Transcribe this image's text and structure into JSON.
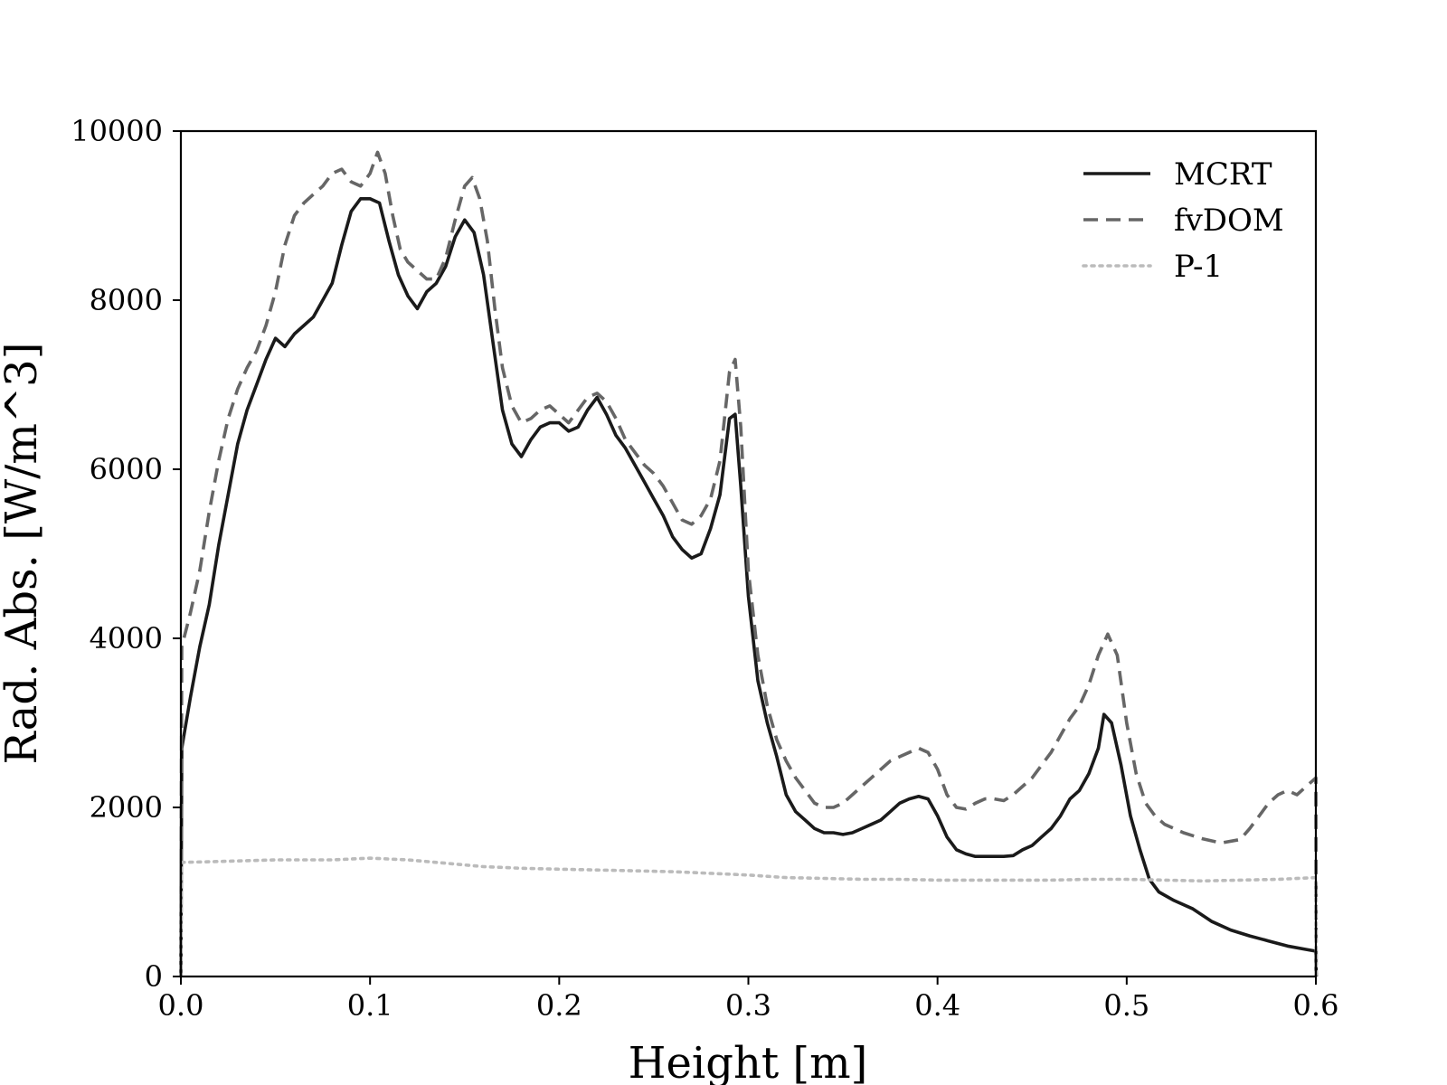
{
  "chart_data": {
    "type": "line",
    "title": "",
    "xlabel": "Height [m]",
    "ylabel": "Rad. Abs. [W/m^3]",
    "xlim": [
      0.0,
      0.6
    ],
    "ylim": [
      0,
      10000
    ],
    "xticks": [
      0.0,
      0.1,
      0.2,
      0.3,
      0.4,
      0.5,
      0.6
    ],
    "xtick_labels": [
      "0.0",
      "0.1",
      "0.2",
      "0.3",
      "0.4",
      "0.5",
      "0.6"
    ],
    "yticks": [
      0,
      2000,
      4000,
      6000,
      8000,
      10000
    ],
    "ytick_labels": [
      "0",
      "2000",
      "4000",
      "6000",
      "8000",
      "10000"
    ],
    "grid": false,
    "legend_position": "top-right",
    "series": [
      {
        "name": "MCRT",
        "color": "#1a1a1a",
        "style": "solid",
        "points": [
          [
            0.0,
            0
          ],
          [
            0.0005,
            2700
          ],
          [
            0.005,
            3300
          ],
          [
            0.01,
            3900
          ],
          [
            0.015,
            4400
          ],
          [
            0.02,
            5100
          ],
          [
            0.025,
            5700
          ],
          [
            0.03,
            6300
          ],
          [
            0.035,
            6700
          ],
          [
            0.04,
            7000
          ],
          [
            0.045,
            7300
          ],
          [
            0.05,
            7550
          ],
          [
            0.055,
            7450
          ],
          [
            0.06,
            7600
          ],
          [
            0.065,
            7700
          ],
          [
            0.07,
            7800
          ],
          [
            0.075,
            8000
          ],
          [
            0.08,
            8200
          ],
          [
            0.085,
            8650
          ],
          [
            0.09,
            9050
          ],
          [
            0.095,
            9200
          ],
          [
            0.1,
            9200
          ],
          [
            0.105,
            9150
          ],
          [
            0.11,
            8700
          ],
          [
            0.115,
            8300
          ],
          [
            0.12,
            8050
          ],
          [
            0.125,
            7900
          ],
          [
            0.13,
            8100
          ],
          [
            0.135,
            8200
          ],
          [
            0.14,
            8400
          ],
          [
            0.145,
            8750
          ],
          [
            0.15,
            8950
          ],
          [
            0.155,
            8800
          ],
          [
            0.16,
            8300
          ],
          [
            0.165,
            7500
          ],
          [
            0.17,
            6700
          ],
          [
            0.175,
            6300
          ],
          [
            0.18,
            6150
          ],
          [
            0.185,
            6350
          ],
          [
            0.19,
            6500
          ],
          [
            0.195,
            6550
          ],
          [
            0.2,
            6550
          ],
          [
            0.205,
            6450
          ],
          [
            0.21,
            6500
          ],
          [
            0.215,
            6700
          ],
          [
            0.22,
            6850
          ],
          [
            0.225,
            6650
          ],
          [
            0.23,
            6400
          ],
          [
            0.235,
            6250
          ],
          [
            0.24,
            6050
          ],
          [
            0.245,
            5850
          ],
          [
            0.25,
            5650
          ],
          [
            0.255,
            5450
          ],
          [
            0.26,
            5200
          ],
          [
            0.265,
            5050
          ],
          [
            0.27,
            4950
          ],
          [
            0.275,
            5000
          ],
          [
            0.28,
            5300
          ],
          [
            0.285,
            5700
          ],
          [
            0.29,
            6600
          ],
          [
            0.293,
            6650
          ],
          [
            0.296,
            5800
          ],
          [
            0.3,
            4500
          ],
          [
            0.305,
            3500
          ],
          [
            0.31,
            3000
          ],
          [
            0.315,
            2600
          ],
          [
            0.32,
            2150
          ],
          [
            0.325,
            1950
          ],
          [
            0.33,
            1850
          ],
          [
            0.335,
            1750
          ],
          [
            0.34,
            1700
          ],
          [
            0.345,
            1700
          ],
          [
            0.35,
            1680
          ],
          [
            0.355,
            1700
          ],
          [
            0.36,
            1750
          ],
          [
            0.365,
            1800
          ],
          [
            0.37,
            1850
          ],
          [
            0.375,
            1950
          ],
          [
            0.38,
            2050
          ],
          [
            0.385,
            2100
          ],
          [
            0.39,
            2130
          ],
          [
            0.395,
            2100
          ],
          [
            0.4,
            1900
          ],
          [
            0.405,
            1650
          ],
          [
            0.41,
            1500
          ],
          [
            0.415,
            1450
          ],
          [
            0.42,
            1420
          ],
          [
            0.425,
            1420
          ],
          [
            0.43,
            1420
          ],
          [
            0.435,
            1420
          ],
          [
            0.44,
            1430
          ],
          [
            0.445,
            1500
          ],
          [
            0.45,
            1550
          ],
          [
            0.455,
            1650
          ],
          [
            0.46,
            1750
          ],
          [
            0.465,
            1900
          ],
          [
            0.47,
            2100
          ],
          [
            0.475,
            2200
          ],
          [
            0.48,
            2400
          ],
          [
            0.485,
            2700
          ],
          [
            0.488,
            3100
          ],
          [
            0.492,
            3000
          ],
          [
            0.497,
            2500
          ],
          [
            0.502,
            1900
          ],
          [
            0.507,
            1500
          ],
          [
            0.512,
            1150
          ],
          [
            0.517,
            1000
          ],
          [
            0.525,
            900
          ],
          [
            0.535,
            800
          ],
          [
            0.545,
            650
          ],
          [
            0.555,
            550
          ],
          [
            0.565,
            480
          ],
          [
            0.575,
            420
          ],
          [
            0.585,
            360
          ],
          [
            0.595,
            320
          ],
          [
            0.6,
            300
          ],
          [
            0.6002,
            0
          ]
        ]
      },
      {
        "name": "fvDOM",
        "color": "#666666",
        "style": "dashed",
        "points": [
          [
            0.0,
            0
          ],
          [
            0.0005,
            3900
          ],
          [
            0.005,
            4300
          ],
          [
            0.01,
            4800
          ],
          [
            0.015,
            5500
          ],
          [
            0.02,
            6100
          ],
          [
            0.025,
            6600
          ],
          [
            0.03,
            6950
          ],
          [
            0.035,
            7200
          ],
          [
            0.04,
            7400
          ],
          [
            0.045,
            7700
          ],
          [
            0.05,
            8100
          ],
          [
            0.055,
            8650
          ],
          [
            0.06,
            9000
          ],
          [
            0.065,
            9150
          ],
          [
            0.07,
            9250
          ],
          [
            0.075,
            9350
          ],
          [
            0.08,
            9500
          ],
          [
            0.085,
            9550
          ],
          [
            0.09,
            9400
          ],
          [
            0.095,
            9350
          ],
          [
            0.1,
            9500
          ],
          [
            0.104,
            9750
          ],
          [
            0.108,
            9500
          ],
          [
            0.112,
            9000
          ],
          [
            0.116,
            8600
          ],
          [
            0.12,
            8450
          ],
          [
            0.125,
            8350
          ],
          [
            0.13,
            8250
          ],
          [
            0.135,
            8250
          ],
          [
            0.14,
            8500
          ],
          [
            0.145,
            8950
          ],
          [
            0.15,
            9350
          ],
          [
            0.154,
            9450
          ],
          [
            0.158,
            9200
          ],
          [
            0.162,
            8700
          ],
          [
            0.166,
            7900
          ],
          [
            0.17,
            7200
          ],
          [
            0.175,
            6750
          ],
          [
            0.18,
            6550
          ],
          [
            0.185,
            6600
          ],
          [
            0.19,
            6700
          ],
          [
            0.195,
            6750
          ],
          [
            0.2,
            6650
          ],
          [
            0.205,
            6550
          ],
          [
            0.21,
            6700
          ],
          [
            0.215,
            6850
          ],
          [
            0.22,
            6900
          ],
          [
            0.225,
            6800
          ],
          [
            0.23,
            6600
          ],
          [
            0.235,
            6350
          ],
          [
            0.24,
            6200
          ],
          [
            0.245,
            6050
          ],
          [
            0.25,
            5950
          ],
          [
            0.255,
            5800
          ],
          [
            0.26,
            5600
          ],
          [
            0.265,
            5400
          ],
          [
            0.27,
            5350
          ],
          [
            0.275,
            5450
          ],
          [
            0.28,
            5650
          ],
          [
            0.285,
            6100
          ],
          [
            0.29,
            7150
          ],
          [
            0.293,
            7300
          ],
          [
            0.296,
            6500
          ],
          [
            0.3,
            4800
          ],
          [
            0.305,
            3800
          ],
          [
            0.31,
            3200
          ],
          [
            0.315,
            2800
          ],
          [
            0.32,
            2550
          ],
          [
            0.325,
            2350
          ],
          [
            0.33,
            2200
          ],
          [
            0.335,
            2050
          ],
          [
            0.34,
            2000
          ],
          [
            0.345,
            2000
          ],
          [
            0.35,
            2050
          ],
          [
            0.355,
            2150
          ],
          [
            0.36,
            2250
          ],
          [
            0.365,
            2350
          ],
          [
            0.37,
            2450
          ],
          [
            0.375,
            2550
          ],
          [
            0.38,
            2600
          ],
          [
            0.385,
            2650
          ],
          [
            0.39,
            2700
          ],
          [
            0.395,
            2650
          ],
          [
            0.4,
            2450
          ],
          [
            0.405,
            2150
          ],
          [
            0.41,
            2000
          ],
          [
            0.415,
            1980
          ],
          [
            0.42,
            2050
          ],
          [
            0.425,
            2100
          ],
          [
            0.43,
            2100
          ],
          [
            0.435,
            2080
          ],
          [
            0.44,
            2150
          ],
          [
            0.445,
            2250
          ],
          [
            0.45,
            2350
          ],
          [
            0.455,
            2500
          ],
          [
            0.46,
            2650
          ],
          [
            0.465,
            2850
          ],
          [
            0.47,
            3050
          ],
          [
            0.475,
            3200
          ],
          [
            0.48,
            3450
          ],
          [
            0.485,
            3800
          ],
          [
            0.49,
            4050
          ],
          [
            0.495,
            3800
          ],
          [
            0.5,
            3000
          ],
          [
            0.505,
            2400
          ],
          [
            0.51,
            2050
          ],
          [
            0.515,
            1900
          ],
          [
            0.52,
            1800
          ],
          [
            0.53,
            1700
          ],
          [
            0.54,
            1630
          ],
          [
            0.55,
            1580
          ],
          [
            0.56,
            1620
          ],
          [
            0.565,
            1750
          ],
          [
            0.57,
            1900
          ],
          [
            0.575,
            2050
          ],
          [
            0.58,
            2150
          ],
          [
            0.585,
            2200
          ],
          [
            0.59,
            2150
          ],
          [
            0.595,
            2250
          ],
          [
            0.6,
            2350
          ],
          [
            0.6002,
            0
          ]
        ]
      },
      {
        "name": "P-1",
        "color": "#bbbbbb",
        "style": "dotted",
        "points": [
          [
            0.0,
            0
          ],
          [
            0.0005,
            1350
          ],
          [
            0.02,
            1360
          ],
          [
            0.05,
            1380
          ],
          [
            0.08,
            1380
          ],
          [
            0.1,
            1400
          ],
          [
            0.12,
            1380
          ],
          [
            0.14,
            1340
          ],
          [
            0.16,
            1300
          ],
          [
            0.18,
            1280
          ],
          [
            0.2,
            1270
          ],
          [
            0.22,
            1260
          ],
          [
            0.24,
            1250
          ],
          [
            0.26,
            1240
          ],
          [
            0.28,
            1220
          ],
          [
            0.3,
            1200
          ],
          [
            0.32,
            1170
          ],
          [
            0.34,
            1160
          ],
          [
            0.36,
            1150
          ],
          [
            0.38,
            1150
          ],
          [
            0.4,
            1140
          ],
          [
            0.42,
            1140
          ],
          [
            0.44,
            1140
          ],
          [
            0.46,
            1140
          ],
          [
            0.48,
            1150
          ],
          [
            0.5,
            1150
          ],
          [
            0.52,
            1140
          ],
          [
            0.54,
            1130
          ],
          [
            0.56,
            1140
          ],
          [
            0.58,
            1150
          ],
          [
            0.6,
            1170
          ],
          [
            0.6002,
            0
          ]
        ]
      }
    ]
  }
}
